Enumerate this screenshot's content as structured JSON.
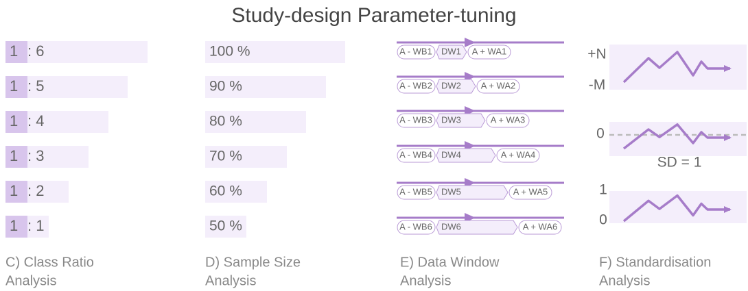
{
  "title": "Study-design Parameter-tuning",
  "class_ratio": {
    "caption": [
      "C) Class Ratio",
      "Analysis"
    ],
    "rows": [
      {
        "left": "1",
        "right": ": 6"
      },
      {
        "left": "1",
        "right": ": 5"
      },
      {
        "left": "1",
        "right": ": 4"
      },
      {
        "left": "1",
        "right": ": 3"
      },
      {
        "left": "1",
        "right": ": 2"
      },
      {
        "left": "1",
        "right": ": 1"
      }
    ]
  },
  "sample_size": {
    "caption": [
      "D) Sample Size",
      "Analysis"
    ],
    "rows": [
      "100 %",
      "90 %",
      "80 %",
      "70 %",
      "60 %",
      "50 %"
    ]
  },
  "data_window": {
    "caption": [
      "E) Data Window",
      "Analysis"
    ],
    "rows": [
      {
        "before": "A - WB1",
        "window": "DW1",
        "after": "A + WA1"
      },
      {
        "before": "A - WB2",
        "window": "DW2",
        "after": "A + WA2"
      },
      {
        "before": "A - WB3",
        "window": "DW3",
        "after": "A + WA3"
      },
      {
        "before": "A - WB4",
        "window": "DW4",
        "after": "A + WA4"
      },
      {
        "before": "A - WB5",
        "window": "DW5",
        "after": "A + WA5"
      },
      {
        "before": "A - WB6",
        "window": "DW6",
        "after": "A + WA6"
      }
    ]
  },
  "standardisation": {
    "caption": [
      "F) Standardisation",
      "Analysis"
    ],
    "labels": {
      "top": "+N",
      "bottom": "-M",
      "zero": "0",
      "sd": "SD = 1",
      "one": "1",
      "zero2": "0"
    }
  }
}
